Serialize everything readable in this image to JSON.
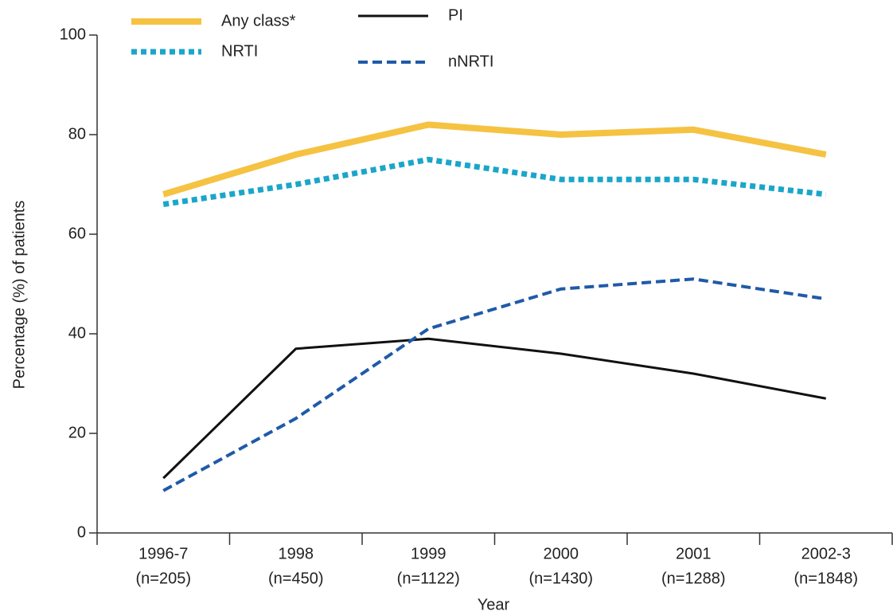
{
  "chart_data": {
    "type": "line",
    "x_label": "Year",
    "y_label": "Percentage (%) of patients",
    "categories": [
      "1996-7",
      "1998",
      "1999",
      "2000",
      "2001",
      "2002-3"
    ],
    "category_sublabels": [
      "(n=205)",
      "(n=450)",
      "(n=1122)",
      "(n=1430)",
      "(n=1288)",
      "(n=1848)"
    ],
    "ylim": [
      0,
      100
    ],
    "yticks": [
      0,
      20,
      40,
      60,
      80,
      100
    ],
    "series": [
      {
        "name": "Any class*",
        "color": "#f5c242",
        "style": "solid-thick",
        "values": [
          68,
          76,
          82,
          80,
          81,
          76
        ]
      },
      {
        "name": "PI",
        "color": "#111111",
        "style": "solid",
        "values": [
          11,
          37,
          39,
          36,
          32,
          27
        ]
      },
      {
        "name": "NRTI",
        "color": "#1ba6c9",
        "style": "dotted",
        "values": [
          66,
          70,
          75,
          71,
          71,
          68
        ]
      },
      {
        "name": "nNRTI",
        "color": "#1f5aa8",
        "style": "dashed",
        "values": [
          8.5,
          23,
          41,
          49,
          51,
          47
        ]
      }
    ]
  }
}
